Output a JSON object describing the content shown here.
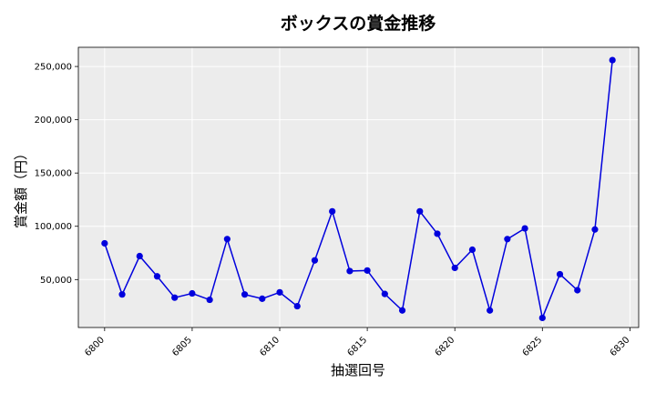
{
  "chart_data": {
    "type": "line",
    "title": "ボックスの賞金推移",
    "xlabel": "抽選回号",
    "ylabel": "賞金額（円）",
    "xlim": [
      6798.5,
      6830.5
    ],
    "ylim": [
      5000,
      268000
    ],
    "x_ticks": [
      6800,
      6805,
      6810,
      6815,
      6820,
      6825,
      6830
    ],
    "y_ticks": [
      50000,
      100000,
      150000,
      200000,
      250000
    ],
    "y_tick_labels": [
      "50,000",
      "100,000",
      "150,000",
      "200,000",
      "250,000"
    ],
    "grid": true,
    "series": [
      {
        "color": "#0000dd",
        "x": [
          6800,
          6801,
          6802,
          6803,
          6804,
          6805,
          6806,
          6807,
          6808,
          6809,
          6810,
          6811,
          6812,
          6813,
          6814,
          6815,
          6816,
          6817,
          6818,
          6819,
          6820,
          6821,
          6822,
          6823,
          6824,
          6825,
          6826,
          6827,
          6828,
          6829
        ],
        "y": [
          84000,
          36000,
          72000,
          53000,
          33000,
          37000,
          31000,
          88000,
          36000,
          32000,
          38000,
          25000,
          68000,
          114000,
          58000,
          58500,
          36500,
          21000,
          114000,
          93000,
          61000,
          78000,
          21000,
          88000,
          98000,
          14000,
          55000,
          40000,
          97000,
          256000
        ]
      }
    ]
  }
}
